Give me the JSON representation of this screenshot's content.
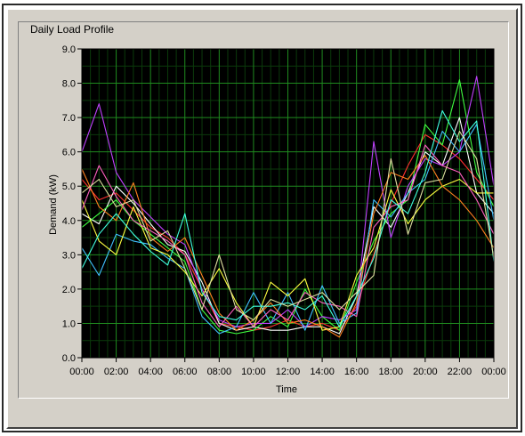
{
  "window": {
    "panel_title": "Daily Load Profile"
  },
  "colors": {
    "plot_background": "#000000",
    "grid_major": "#1f8a1f",
    "grid_minor": "#0b3a0b"
  },
  "chart_data": {
    "type": "line",
    "title": "Daily Load Profile",
    "xlabel": "Time",
    "ylabel": "Demand (kW)",
    "xlim": [
      "00:00",
      "24:00"
    ],
    "ylim": [
      0,
      9
    ],
    "x_tick_labels": [
      "00:00",
      "02:00",
      "04:00",
      "06:00",
      "08:00",
      "10:00",
      "12:00",
      "14:00",
      "16:00",
      "18:00",
      "20:00",
      "22:00",
      "00:00"
    ],
    "y_tick_labels": [
      "0.0",
      "1.0",
      "2.0",
      "3.0",
      "4.0",
      "5.0",
      "6.0",
      "7.0",
      "8.0",
      "9.0"
    ],
    "grid": true,
    "legend": "none",
    "x_hours": [
      0,
      1,
      2,
      3,
      4,
      5,
      6,
      7,
      8,
      9,
      10,
      11,
      12,
      13,
      14,
      15,
      16,
      17,
      18,
      19,
      20,
      21,
      22,
      23,
      24
    ],
    "series": [
      {
        "color": "#ff3030",
        "values": [
          5.2,
          4.6,
          4.8,
          4.3,
          3.8,
          3.5,
          3.0,
          2.0,
          1.0,
          0.9,
          0.8,
          0.9,
          1.1,
          0.9,
          1.0,
          0.8,
          1.5,
          3.0,
          4.5,
          5.6,
          6.5,
          6.2,
          5.8,
          5.2,
          4.6
        ]
      },
      {
        "color": "#ffffff",
        "values": [
          4.2,
          3.9,
          5.0,
          4.5,
          3.9,
          3.3,
          3.1,
          2.2,
          1.0,
          0.8,
          0.9,
          0.8,
          0.8,
          0.9,
          0.9,
          0.7,
          1.8,
          4.4,
          3.8,
          4.8,
          6.0,
          5.6,
          7.0,
          4.8,
          4.2
        ]
      },
      {
        "color": "#40ff40",
        "values": [
          3.8,
          4.2,
          4.6,
          4.0,
          3.6,
          3.2,
          2.8,
          1.4,
          0.8,
          0.7,
          0.8,
          1.2,
          0.9,
          2.0,
          1.2,
          0.8,
          2.2,
          3.4,
          4.2,
          4.6,
          6.8,
          6.2,
          8.1,
          5.4,
          4.4
        ]
      },
      {
        "color": "#c040ff",
        "values": [
          6.0,
          7.4,
          5.4,
          4.6,
          4.1,
          3.6,
          3.3,
          2.0,
          1.1,
          0.9,
          1.0,
          1.0,
          1.4,
          0.9,
          1.2,
          1.1,
          1.4,
          6.3,
          3.5,
          5.0,
          5.8,
          5.6,
          6.0,
          8.2,
          5.0
        ]
      },
      {
        "color": "#40c0ff",
        "values": [
          3.2,
          2.4,
          3.6,
          3.4,
          3.3,
          2.9,
          2.6,
          1.2,
          0.7,
          0.9,
          1.9,
          1.0,
          1.9,
          0.8,
          2.1,
          1.0,
          1.3,
          4.6,
          4.1,
          4.8,
          5.2,
          6.6,
          6.0,
          6.8,
          4.0
        ]
      },
      {
        "color": "#ffff40",
        "values": [
          4.6,
          3.4,
          3.0,
          4.4,
          3.2,
          3.0,
          2.5,
          1.8,
          2.6,
          1.6,
          0.9,
          2.2,
          1.8,
          2.3,
          0.8,
          0.9,
          2.4,
          3.2,
          4.9,
          3.9,
          4.6,
          5.0,
          5.2,
          4.8,
          4.8
        ]
      },
      {
        "color": "#ff8020",
        "values": [
          5.5,
          4.4,
          4.0,
          5.1,
          3.5,
          3.1,
          3.5,
          2.4,
          1.3,
          0.8,
          1.1,
          1.6,
          1.0,
          1.1,
          0.9,
          0.6,
          1.6,
          4.2,
          5.4,
          5.2,
          5.9,
          5.0,
          4.6,
          4.0,
          3.2
        ]
      },
      {
        "color": "#ff60c0",
        "values": [
          4.3,
          5.6,
          4.7,
          4.0,
          3.7,
          3.4,
          3.0,
          1.6,
          0.9,
          1.5,
          0.9,
          1.4,
          1.1,
          1.9,
          1.6,
          1.5,
          1.2,
          3.8,
          4.4,
          4.6,
          6.2,
          5.6,
          5.4,
          4.6,
          3.6
        ]
      },
      {
        "color": "#40ffe0",
        "values": [
          2.6,
          3.6,
          4.2,
          3.6,
          3.1,
          2.7,
          4.2,
          1.9,
          1.2,
          1.1,
          1.5,
          1.5,
          1.6,
          1.4,
          1.8,
          0.9,
          1.8,
          2.9,
          4.6,
          4.2,
          5.4,
          7.2,
          6.3,
          6.9,
          2.8
        ]
      },
      {
        "color": "#e0e0a0",
        "values": [
          4.8,
          5.2,
          4.4,
          4.6,
          3.4,
          3.7,
          2.6,
          1.4,
          3.0,
          1.4,
          1.1,
          1.7,
          1.5,
          1.7,
          1.9,
          1.4,
          1.9,
          2.4,
          5.8,
          3.6,
          5.1,
          5.2,
          6.6,
          5.8,
          2.9
        ]
      }
    ]
  }
}
